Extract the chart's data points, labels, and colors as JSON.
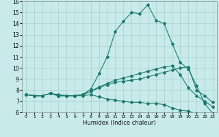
{
  "xlabel": "Humidex (Indice chaleur)",
  "ylabel": "",
  "xlim": [
    -0.5,
    23.5
  ],
  "ylim": [
    6,
    16
  ],
  "xticks": [
    0,
    1,
    2,
    3,
    4,
    5,
    6,
    7,
    8,
    9,
    10,
    11,
    12,
    13,
    14,
    15,
    16,
    17,
    18,
    19,
    20,
    21,
    22,
    23
  ],
  "yticks": [
    6,
    7,
    8,
    9,
    10,
    11,
    12,
    13,
    14,
    15,
    16
  ],
  "background_color": "#c8eaea",
  "grid_color": "#a8d5d0",
  "line_color": "#1a7a6e",
  "line1_x": [
    0,
    1,
    2,
    3,
    4,
    5,
    6,
    7,
    8,
    9,
    10,
    11,
    12,
    13,
    14,
    15,
    16,
    17,
    18,
    19,
    20,
    21,
    22,
    23
  ],
  "line1_y": [
    7.6,
    7.5,
    7.5,
    7.7,
    7.6,
    7.5,
    7.5,
    7.6,
    8.1,
    9.5,
    11.0,
    13.3,
    14.2,
    15.0,
    14.9,
    15.7,
    14.3,
    14.0,
    12.2,
    10.5,
    9.9,
    8.4,
    6.8,
    5.9
  ],
  "line2_x": [
    0,
    1,
    2,
    3,
    4,
    5,
    6,
    7,
    8,
    9,
    10,
    11,
    12,
    13,
    14,
    15,
    16,
    17,
    18,
    19,
    20,
    21,
    22,
    23
  ],
  "line2_y": [
    7.6,
    7.5,
    7.5,
    7.7,
    7.5,
    7.5,
    7.5,
    7.6,
    7.9,
    8.2,
    8.5,
    8.7,
    8.8,
    8.9,
    9.0,
    9.2,
    9.4,
    9.6,
    9.8,
    10.0,
    10.1,
    8.0,
    7.5,
    6.9
  ],
  "line3_x": [
    0,
    1,
    2,
    3,
    4,
    5,
    6,
    7,
    8,
    9,
    10,
    11,
    12,
    13,
    14,
    15,
    16,
    17,
    18,
    19,
    20,
    21,
    22,
    23
  ],
  "line3_y": [
    7.6,
    7.5,
    7.5,
    7.7,
    7.5,
    7.5,
    7.5,
    7.6,
    7.9,
    8.3,
    8.6,
    8.9,
    9.1,
    9.3,
    9.5,
    9.7,
    9.9,
    10.1,
    10.2,
    9.4,
    8.2,
    7.5,
    7.0,
    6.5
  ],
  "line4_x": [
    0,
    1,
    2,
    3,
    4,
    5,
    6,
    7,
    8,
    9,
    10,
    11,
    12,
    13,
    14,
    15,
    16,
    17,
    18,
    19,
    20,
    21,
    22,
    23
  ],
  "line4_y": [
    7.6,
    7.5,
    7.5,
    7.7,
    7.5,
    7.5,
    7.5,
    7.5,
    7.6,
    7.4,
    7.2,
    7.1,
    7.0,
    6.9,
    6.9,
    6.8,
    6.8,
    6.7,
    6.4,
    6.2,
    6.1,
    5.9,
    5.9,
    5.9
  ]
}
